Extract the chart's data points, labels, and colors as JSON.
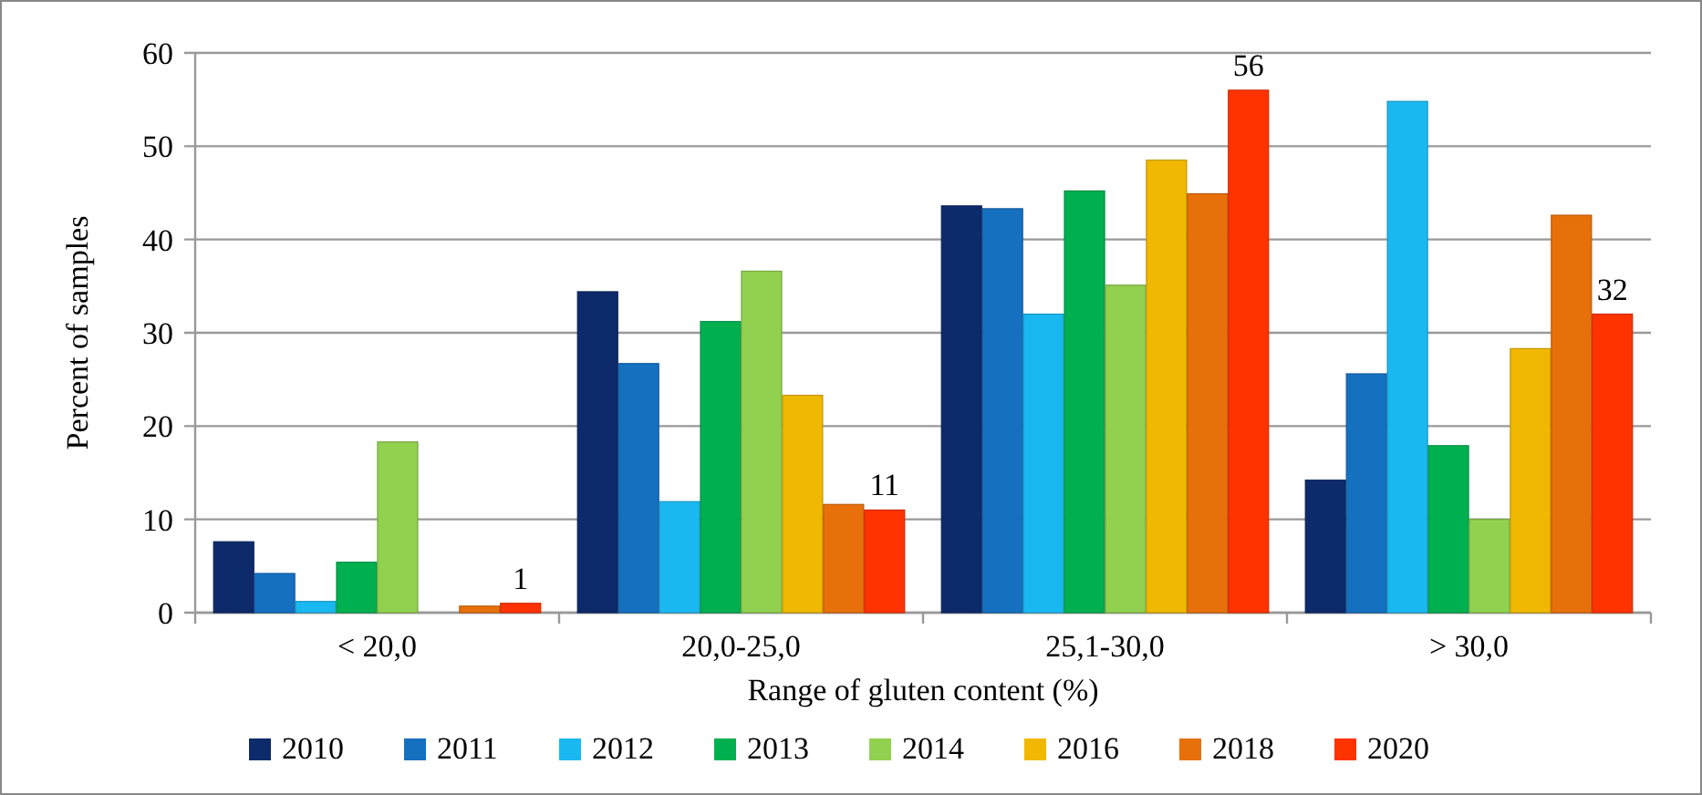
{
  "chart_data": {
    "type": "bar",
    "xlabel": "Range of gluten content (%)",
    "ylabel": "Percent of samples",
    "categories": [
      "< 20,0",
      "20,0-25,0",
      "25,1-30,0",
      "> 30,0"
    ],
    "series": [
      {
        "name": "2010",
        "color": "#0d2a6b",
        "values": [
          7.6,
          34.4,
          43.6,
          14.2
        ]
      },
      {
        "name": "2011",
        "color": "#1570c0",
        "values": [
          4.2,
          26.7,
          43.3,
          25.6
        ]
      },
      {
        "name": "2012",
        "color": "#1ab8f0",
        "values": [
          1.2,
          11.9,
          32.0,
          54.8
        ]
      },
      {
        "name": "2013",
        "color": "#00b050",
        "values": [
          5.4,
          31.2,
          45.2,
          17.9
        ]
      },
      {
        "name": "2014",
        "color": "#92d050",
        "values": [
          18.3,
          36.6,
          35.1,
          10.0
        ]
      },
      {
        "name": "2016",
        "color": "#f0b800",
        "values": [
          0,
          23.3,
          48.5,
          28.3
        ]
      },
      {
        "name": "2018",
        "color": "#e8700a",
        "values": [
          0.7,
          11.6,
          44.9,
          42.6
        ]
      },
      {
        "name": "2020",
        "color": "#ff3300",
        "values": [
          1,
          11,
          56,
          32
        ],
        "value_labels": [
          "1",
          "11",
          "56",
          "32"
        ]
      }
    ],
    "ylim": [
      0,
      60
    ],
    "yticks": [
      0,
      10,
      20,
      30,
      40,
      50,
      60
    ],
    "grid": "y",
    "legend": "bottom"
  }
}
